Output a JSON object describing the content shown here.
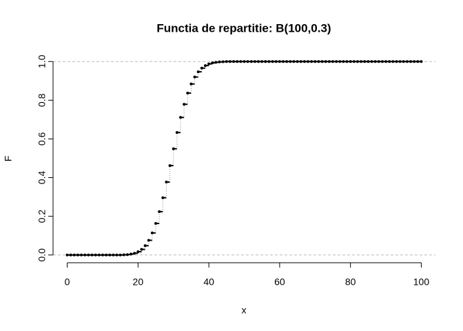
{
  "chart_data": {
    "type": "step",
    "title": "Functia de repartitie: B(100,0.3)",
    "x_label": "x",
    "y_label": "F",
    "x": [
      0,
      1,
      2,
      3,
      4,
      5,
      6,
      7,
      8,
      9,
      10,
      11,
      12,
      13,
      14,
      15,
      16,
      17,
      18,
      19,
      20,
      21,
      22,
      23,
      24,
      25,
      26,
      27,
      28,
      29,
      30,
      31,
      32,
      33,
      34,
      35,
      36,
      37,
      38,
      39,
      40,
      41,
      42,
      43,
      44,
      45,
      46,
      47,
      48,
      49,
      50,
      51,
      52,
      53,
      54,
      55,
      56,
      57,
      58,
      59,
      60,
      61,
      62,
      63,
      64,
      65,
      66,
      67,
      68,
      69,
      70,
      71,
      72,
      73,
      74,
      75,
      76,
      77,
      78,
      79,
      80,
      81,
      82,
      83,
      84,
      85,
      86,
      87,
      88,
      89,
      90,
      91,
      92,
      93,
      94,
      95,
      96,
      97,
      98,
      99,
      100
    ],
    "values": [
      0,
      0,
      0,
      0,
      0,
      0,
      0,
      0,
      0,
      0,
      0,
      0,
      0,
      0,
      0,
      0,
      0.001,
      0.002,
      0.005,
      0.009,
      0.017,
      0.029,
      0.048,
      0.076,
      0.114,
      0.163,
      0.224,
      0.296,
      0.377,
      0.462,
      0.549,
      0.633,
      0.711,
      0.779,
      0.837,
      0.884,
      0.92,
      0.947,
      0.966,
      0.979,
      0.988,
      0.993,
      0.996,
      0.998,
      0.999,
      1,
      1,
      1,
      1,
      1,
      1,
      1,
      1,
      1,
      1,
      1,
      1,
      1,
      1,
      1,
      1,
      1,
      1,
      1,
      1,
      1,
      1,
      1,
      1,
      1,
      1,
      1,
      1,
      1,
      1,
      1,
      1,
      1,
      1,
      1,
      1,
      1,
      1,
      1,
      1,
      1,
      1,
      1,
      1,
      1,
      1,
      1,
      1,
      1,
      1,
      1,
      1,
      1,
      1,
      1,
      1
    ],
    "color": "#000000",
    "xlim": [
      -4,
      104
    ],
    "ylim": [
      -0.04,
      1.04
    ],
    "xticks": [
      0,
      20,
      40,
      60,
      80,
      100
    ],
    "yticks": [
      {
        "value": 0,
        "label": "0.0"
      },
      {
        "value": 0.2,
        "label": "0.2"
      },
      {
        "value": 0.4,
        "label": "0.4"
      },
      {
        "value": 0.6,
        "label": "0.6"
      },
      {
        "value": 0.8,
        "label": "0.8"
      },
      {
        "value": 1,
        "label": "1.0"
      }
    ],
    "hlines": [
      0,
      1
    ]
  }
}
